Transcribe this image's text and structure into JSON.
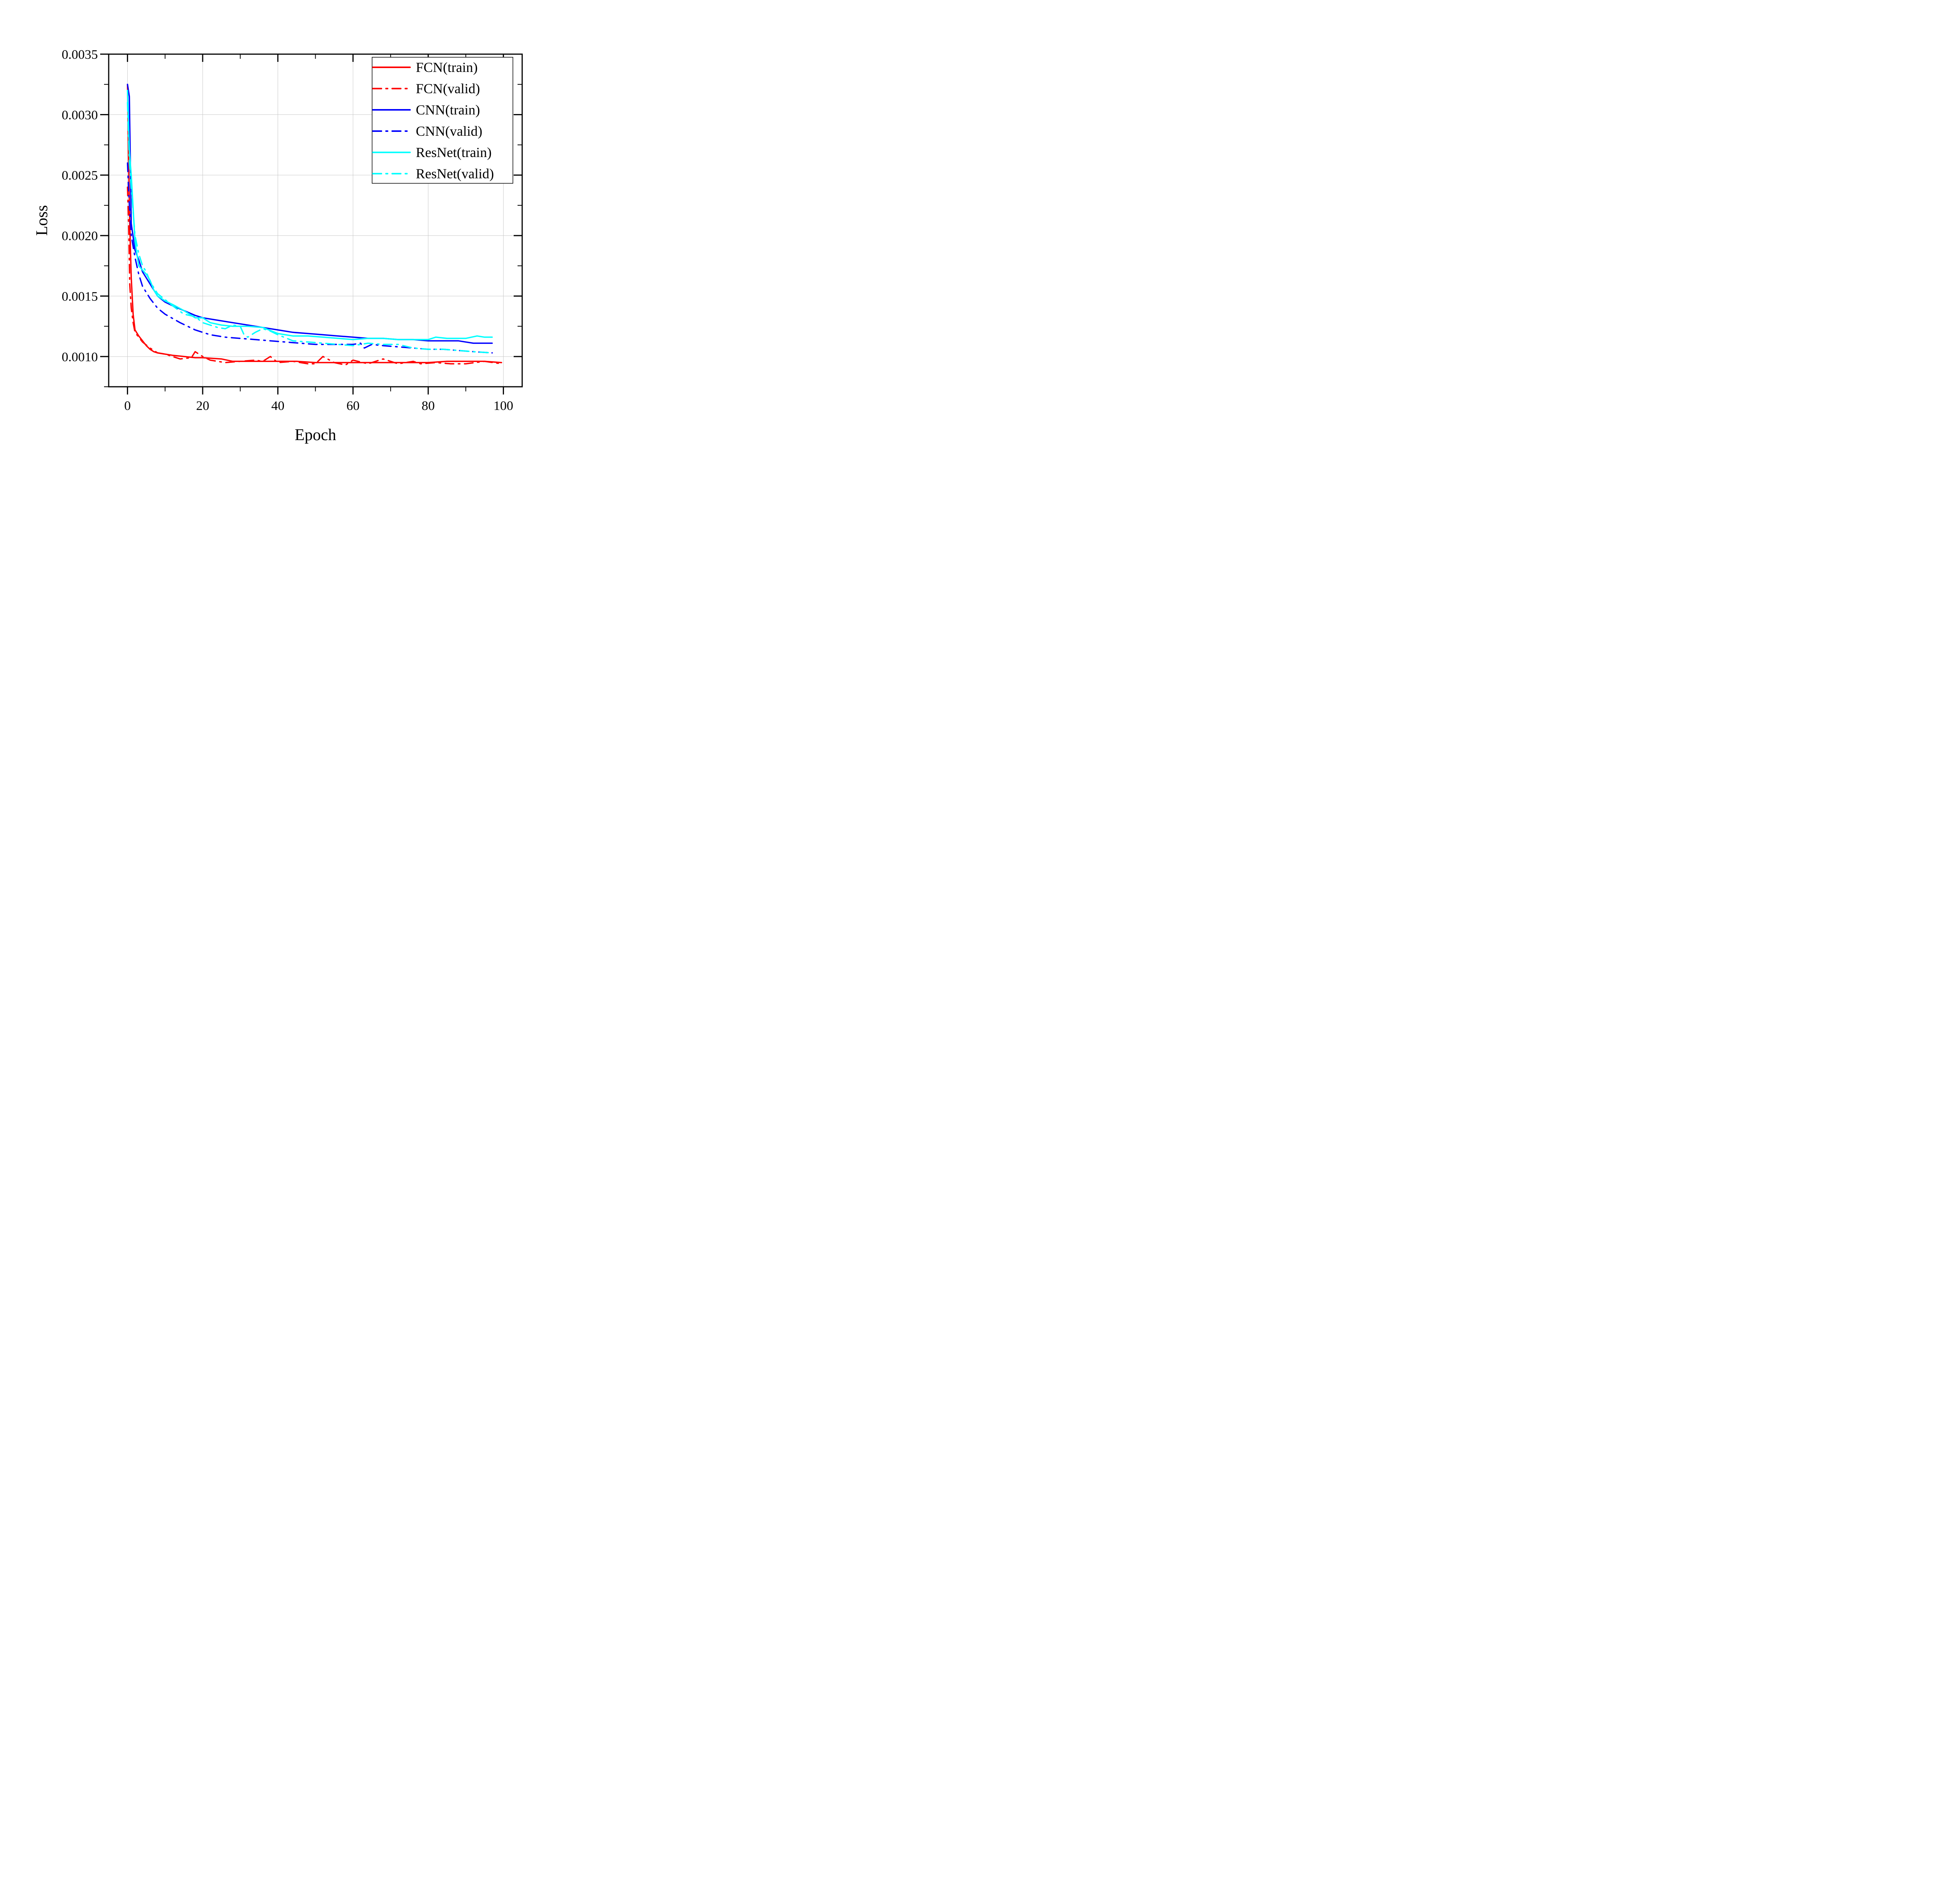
{
  "chart_data": {
    "type": "line",
    "title": "",
    "xlabel": "Epoch",
    "ylabel": "Loss",
    "xlim": [
      -5,
      105
    ],
    "ylim": [
      0.00075,
      0.0035
    ],
    "xticks": [
      0,
      20,
      40,
      60,
      80,
      100
    ],
    "xtick_labels": [
      "0",
      "20",
      "40",
      "60",
      "80",
      "100"
    ],
    "yticks": [
      0.001,
      0.0015,
      0.002,
      0.0025,
      0.003,
      0.0035
    ],
    "ytick_labels": [
      "0.0010",
      "0.0015",
      "0.0020",
      "0.0025",
      "0.0030",
      "0.0035"
    ],
    "grid": true,
    "legend_position": "top-right",
    "series": [
      {
        "name": "FCN(train)",
        "color": "#ff0000",
        "style": "solid",
        "x": [
          0,
          0.3,
          0.6,
          1,
          1.5,
          2,
          3,
          4,
          5,
          6,
          7,
          8,
          10,
          12,
          15,
          18,
          20,
          25,
          28,
          32,
          36,
          40,
          45,
          50,
          55,
          60,
          65,
          70,
          75,
          80,
          85,
          90,
          95,
          99.5
        ],
        "values": [
          0.00325,
          0.0026,
          0.0021,
          0.00165,
          0.00135,
          0.00122,
          0.00117,
          0.00113,
          0.00109,
          0.00106,
          0.00104,
          0.00103,
          0.00102,
          0.00101,
          0.001,
          0.00099,
          0.00099,
          0.00098,
          0.00096,
          0.00096,
          0.00096,
          0.00096,
          0.00096,
          0.00095,
          0.00095,
          0.00095,
          0.00095,
          0.00095,
          0.00095,
          0.00095,
          0.00096,
          0.00096,
          0.00096,
          0.00095
        ]
      },
      {
        "name": "FCN(valid)",
        "color": "#ff0000",
        "style": "dashdot",
        "x": [
          0,
          0.3,
          0.6,
          1,
          1.5,
          2,
          3,
          4,
          6,
          8,
          10,
          14,
          17,
          18,
          20,
          22,
          26,
          30,
          34,
          36,
          38,
          40,
          44,
          48,
          50,
          52,
          55,
          58,
          60,
          64,
          68,
          72,
          76,
          78,
          82,
          86,
          90,
          95,
          99.5
        ],
        "values": [
          0.0024,
          0.0021,
          0.0016,
          0.0014,
          0.00128,
          0.0012,
          0.00116,
          0.00112,
          0.00107,
          0.00103,
          0.00102,
          0.00098,
          0.00099,
          0.00104,
          0.001,
          0.00097,
          0.00095,
          0.00096,
          0.00097,
          0.00096,
          0.001,
          0.00095,
          0.00096,
          0.00094,
          0.00094,
          0.001,
          0.00095,
          0.00093,
          0.00097,
          0.00094,
          0.00098,
          0.00094,
          0.00096,
          0.00094,
          0.00095,
          0.00094,
          0.00094,
          0.00096,
          0.00094
        ]
      },
      {
        "name": "CNN(train)",
        "color": "#0000ff",
        "style": "solid",
        "x": [
          0,
          0.5,
          1,
          2,
          3,
          4,
          5,
          6,
          8,
          10,
          12,
          15,
          18,
          20,
          24,
          28,
          32,
          36,
          40,
          44,
          48,
          52,
          56,
          60,
          64,
          68,
          72,
          76,
          80,
          84,
          88,
          90,
          92,
          94,
          97
        ],
        "values": [
          0.00325,
          0.00315,
          0.0021,
          0.00188,
          0.0018,
          0.0017,
          0.00165,
          0.0016,
          0.0015,
          0.00145,
          0.00142,
          0.00138,
          0.00134,
          0.00132,
          0.0013,
          0.00128,
          0.00126,
          0.00124,
          0.00122,
          0.0012,
          0.00119,
          0.00118,
          0.00117,
          0.00116,
          0.00115,
          0.00115,
          0.00114,
          0.00114,
          0.00113,
          0.00113,
          0.00113,
          0.00112,
          0.00111,
          0.00111,
          0.00111
        ]
      },
      {
        "name": "CNN(valid)",
        "color": "#0000ff",
        "style": "dashdot",
        "x": [
          0,
          0.5,
          1,
          2,
          3,
          4,
          6,
          8,
          10,
          14,
          18,
          22,
          26,
          30,
          34,
          38,
          42,
          46,
          50,
          55,
          60,
          62,
          63,
          65,
          68,
          72,
          76,
          80,
          84,
          88,
          92,
          97
        ],
        "values": [
          0.0026,
          0.00225,
          0.002,
          0.00182,
          0.00168,
          0.00158,
          0.00148,
          0.0014,
          0.00135,
          0.00128,
          0.00122,
          0.00118,
          0.00116,
          0.00115,
          0.00114,
          0.00113,
          0.00112,
          0.00111,
          0.0011,
          0.0011,
          0.0011,
          0.00111,
          0.00107,
          0.0011,
          0.00109,
          0.00108,
          0.00107,
          0.00106,
          0.00106,
          0.00105,
          0.00104,
          0.00103
        ]
      },
      {
        "name": "ResNet(train)",
        "color": "#00ffff",
        "style": "solid",
        "x": [
          0,
          0.5,
          1,
          2,
          3,
          5,
          6,
          7,
          8,
          10,
          12,
          15,
          18,
          20,
          22,
          25,
          28,
          32,
          36,
          40,
          44,
          48,
          52,
          56,
          60,
          64,
          68,
          72,
          76,
          80,
          82,
          85,
          88,
          90,
          93,
          95,
          97
        ],
        "values": [
          0.0032,
          0.0027,
          0.0025,
          0.00195,
          0.00175,
          0.00168,
          0.00163,
          0.00155,
          0.0015,
          0.00146,
          0.00143,
          0.00138,
          0.00132,
          0.00132,
          0.00128,
          0.00126,
          0.00125,
          0.00125,
          0.00124,
          0.00119,
          0.00117,
          0.00117,
          0.00116,
          0.00115,
          0.00114,
          0.00115,
          0.00115,
          0.00114,
          0.00114,
          0.00114,
          0.00116,
          0.00115,
          0.00115,
          0.00115,
          0.00117,
          0.00116,
          0.00116
        ]
      },
      {
        "name": "ResNet(valid)",
        "color": "#00ffff",
        "style": "dashdot",
        "x": [
          0,
          0.5,
          1,
          1.5,
          2,
          3,
          4,
          5,
          6,
          8,
          10,
          12,
          15,
          18,
          20,
          24,
          26,
          28,
          30,
          31,
          32,
          34,
          36,
          38,
          40,
          44,
          48,
          52,
          56,
          60,
          64,
          68,
          72,
          76,
          80,
          84,
          88,
          92,
          97
        ],
        "values": [
          0.0031,
          0.0026,
          0.0024,
          0.0022,
          0.002,
          0.00185,
          0.00175,
          0.0017,
          0.00162,
          0.00152,
          0.00147,
          0.00142,
          0.00135,
          0.00133,
          0.00128,
          0.00124,
          0.00123,
          0.00126,
          0.00125,
          0.00118,
          0.00116,
          0.0012,
          0.00123,
          0.00121,
          0.00118,
          0.00113,
          0.00112,
          0.00111,
          0.0011,
          0.00109,
          0.00111,
          0.0011,
          0.0011,
          0.00107,
          0.00106,
          0.00106,
          0.00105,
          0.00104,
          0.00103
        ]
      }
    ]
  }
}
